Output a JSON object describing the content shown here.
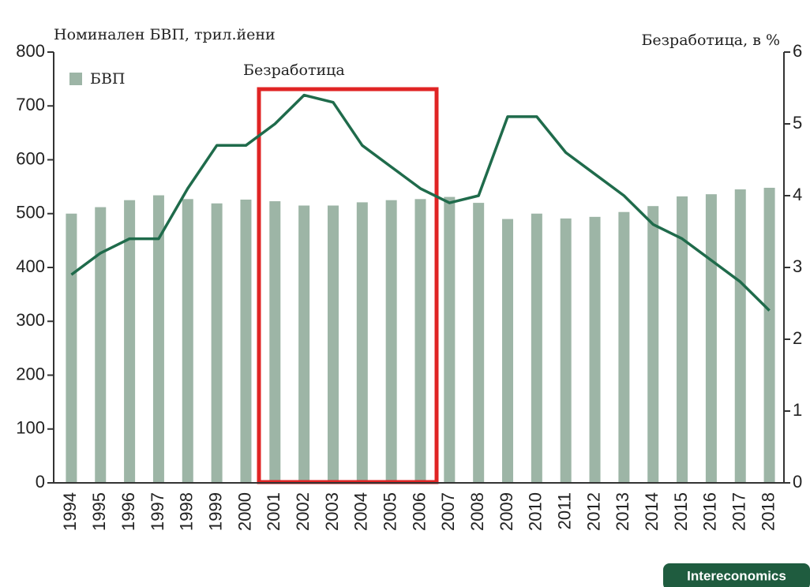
{
  "chart_data": {
    "type": "bar_line",
    "y_title": "Номинален БВП, трил.йени",
    "y2_title": "Безработица, в %",
    "source": "Intereconomics",
    "categories": [
      "1994",
      "1995",
      "1996",
      "1997",
      "1998",
      "1999",
      "2000",
      "2001",
      "2002",
      "2003",
      "2004",
      "2005",
      "2006",
      "2007",
      "2008",
      "2009",
      "2010",
      "2011",
      "2012",
      "2013",
      "2014",
      "2015",
      "2016",
      "2017",
      "2018"
    ],
    "series": [
      {
        "name": "БВП",
        "color": "#9db5a6",
        "values": [
          500,
          512,
          525,
          534,
          527,
          519,
          526,
          523,
          515,
          515,
          521,
          525,
          527,
          531,
          520,
          490,
          500,
          491,
          494,
          503,
          514,
          532,
          536,
          545,
          548
        ]
      },
      {
        "name": "Безработица",
        "color": "#1f6b4b",
        "axis": "y2",
        "values": [
          2.9,
          3.2,
          3.4,
          3.4,
          4.1,
          4.7,
          4.7,
          5.0,
          5.4,
          5.3,
          4.7,
          4.4,
          4.1,
          3.9,
          4.0,
          5.1,
          5.1,
          4.6,
          4.3,
          4.0,
          3.6,
          3.4,
          3.1,
          2.8,
          2.4
        ]
      }
    ],
    "ylim": [
      0,
      800
    ],
    "yticks": [
      0,
      100,
      200,
      300,
      400,
      500,
      600,
      700,
      800
    ],
    "y2lim": [
      0,
      6
    ],
    "y2ticks": [
      0,
      1,
      2,
      3,
      4,
      5,
      6
    ]
  }
}
